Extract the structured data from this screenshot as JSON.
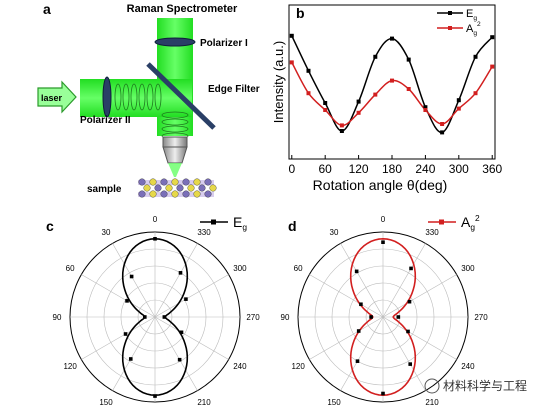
{
  "panels": {
    "a": {
      "label": "a",
      "title": "Raman Spectrometer",
      "labels": {
        "laser": "laser",
        "polarizer_1": "Polarizer I",
        "polarizer_2": "Polarizer II",
        "edge_filter": "Edge Filter",
        "sample": "sample"
      }
    },
    "b": {
      "label": "b"
    },
    "c": {
      "label": "c"
    },
    "d": {
      "label": "d"
    }
  },
  "watermark": {
    "text": "材料科学与工程"
  },
  "colors": {
    "E_g": "#000000",
    "A_g2": "#d21f1f",
    "beam": "#33ee33",
    "filter": "#2a3f66",
    "grid": "#bbbbbb"
  },
  "chart_data": [
    {
      "panel": "b",
      "type": "line",
      "xlabel": "Rotation angle θ(deg)",
      "ylabel": "Intensity (a.u.)",
      "xlim": [
        -5,
        365
      ],
      "ylim": [
        0,
        1.1
      ],
      "xticks": [
        0,
        60,
        120,
        180,
        240,
        300,
        360
      ],
      "legend_position": "top-right",
      "x": [
        0,
        30,
        60,
        90,
        120,
        150,
        180,
        210,
        240,
        270,
        300,
        330,
        360
      ],
      "series": [
        {
          "name": "E",
          "name_sub": "g",
          "color": "#000000",
          "values": [
            0.88,
            0.63,
            0.4,
            0.2,
            0.41,
            0.73,
            0.86,
            0.71,
            0.37,
            0.19,
            0.42,
            0.73,
            0.87
          ]
        },
        {
          "name": "A",
          "name_sub": "g",
          "name_sup": "2",
          "color": "#d21f1f",
          "values": [
            0.69,
            0.47,
            0.35,
            0.24,
            0.33,
            0.46,
            0.56,
            0.5,
            0.35,
            0.25,
            0.36,
            0.47,
            0.66
          ]
        }
      ]
    },
    {
      "panel": "c",
      "type": "scatter",
      "projection": "polar",
      "zero_location": "top",
      "angle_labels": [
        "0",
        "30",
        "60",
        "90",
        "120",
        "150",
        "180",
        "210",
        "240",
        "270",
        "300",
        "330"
      ],
      "legend_position": "top-right",
      "series": [
        {
          "name": "E",
          "name_sub": "g",
          "color": "#000000",
          "angles": [
            0,
            30,
            60,
            90,
            120,
            150,
            180,
            210,
            240,
            270,
            300,
            330
          ],
          "r": [
            0.92,
            0.55,
            0.38,
            0.12,
            0.4,
            0.57,
            0.93,
            0.58,
            0.36,
            0.11,
            0.42,
            0.6
          ]
        }
      ]
    },
    {
      "panel": "d",
      "type": "scatter",
      "projection": "polar",
      "zero_location": "top",
      "angle_labels": [
        "0",
        "30",
        "60",
        "90",
        "120",
        "150",
        "180",
        "210",
        "240",
        "270",
        "300",
        "330"
      ],
      "legend_position": "top-right",
      "series": [
        {
          "name": "A",
          "name_sub": "g",
          "name_sup": "2",
          "color": "#d21f1f",
          "angles": [
            0,
            30,
            60,
            90,
            120,
            150,
            180,
            210,
            240,
            270,
            300,
            330
          ],
          "r": [
            0.88,
            0.62,
            0.3,
            0.14,
            0.33,
            0.6,
            0.9,
            0.64,
            0.34,
            0.18,
            0.36,
            0.66
          ]
        }
      ]
    }
  ]
}
